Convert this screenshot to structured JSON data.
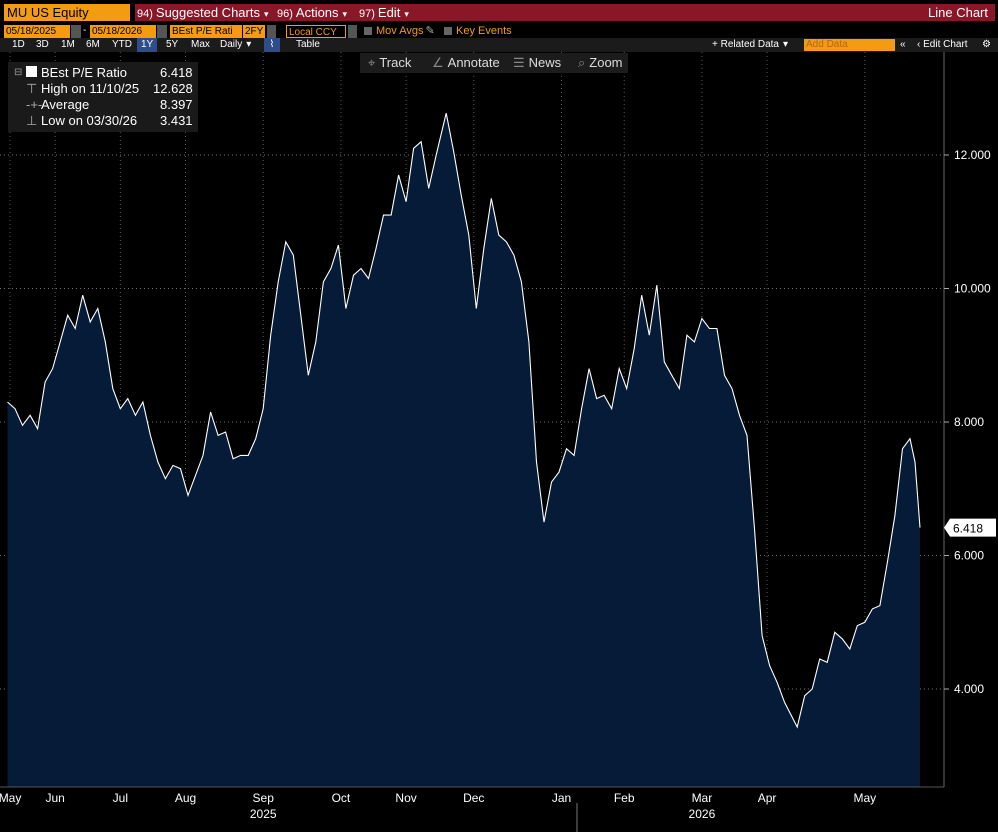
{
  "toolbar": {
    "ticker": "MU US Equity",
    "menu": [
      {
        "num": "94)",
        "label": "Suggested Charts"
      },
      {
        "num": "96)",
        "label": "Actions"
      },
      {
        "num": "97)",
        "label": "Edit"
      }
    ],
    "chart_type": "Line Chart",
    "start_date": "05/18/2025",
    "end_date": "05/18/2026",
    "field": "BEst P/E Rati",
    "period": "2FY",
    "currency": "Local CCY",
    "mov_avgs": "Mov Avgs",
    "key_events": "Key Events",
    "ranges": [
      "1D",
      "3D",
      "1M",
      "6M",
      "YTD",
      "1Y",
      "5Y",
      "Max"
    ],
    "selected_range": "1Y",
    "frequency": "Daily",
    "table": "Table",
    "related_data": "+ Related Data",
    "add_data_placeholder": "Add Data",
    "edit_chart": "Edit Chart",
    "tools": [
      "Track",
      "Annotate",
      "News",
      "Zoom"
    ]
  },
  "legend": {
    "series_label": "BEst P/E Ratio",
    "series_value": "6.418",
    "high_label": "High on 11/10/25",
    "high_value": "12.628",
    "avg_label": "Average",
    "avg_value": "8.397",
    "low_label": "Low on 03/30/26",
    "low_value": "3.431"
  },
  "colors": {
    "background": "#000000",
    "fill": "#061b38",
    "line": "#ffffff",
    "accent": "#f39c12",
    "menu_bar": "#8a1727"
  },
  "chart_data": {
    "type": "area",
    "title": "",
    "xlabel": "",
    "ylabel": "",
    "ylim": [
      2.5,
      13.5
    ],
    "y_ticks": [
      "4.000",
      "6.000",
      "8.000",
      "10.000",
      "12.000"
    ],
    "y_tick_values": [
      4,
      6,
      8,
      10,
      12
    ],
    "last_value_label": "6.418",
    "last_value": 6.418,
    "x_month_labels": [
      "May",
      "Jun",
      "Jul",
      "Aug",
      "Sep",
      "Oct",
      "Nov",
      "Dec",
      "Jan",
      "Feb",
      "Mar",
      "Apr",
      "May"
    ],
    "x_month_dates": [
      "2025-05-20",
      "2025-06-07",
      "2025-07-03",
      "2025-07-29",
      "2025-08-29",
      "2025-09-29",
      "2025-10-25",
      "2025-11-21",
      "2025-12-26",
      "2026-01-20",
      "2026-02-20",
      "2026-03-18",
      "2026-04-26"
    ],
    "x_year_labels": [
      "2025",
      "2026"
    ],
    "x_year_dates": [
      "2025-08-29",
      "2026-02-20"
    ],
    "x_start": "2025-05-18",
    "x_end": "2026-05-18",
    "series": [
      {
        "name": "BEst P/E Ratio",
        "points": [
          [
            "2025-05-19",
            8.3
          ],
          [
            "2025-05-22",
            8.2
          ],
          [
            "2025-05-25",
            7.95
          ],
          [
            "2025-05-28",
            8.1
          ],
          [
            "2025-05-31",
            7.9
          ],
          [
            "2025-06-03",
            8.6
          ],
          [
            "2025-06-06",
            8.8
          ],
          [
            "2025-06-09",
            9.2
          ],
          [
            "2025-06-12",
            9.6
          ],
          [
            "2025-06-15",
            9.4
          ],
          [
            "2025-06-18",
            9.9
          ],
          [
            "2025-06-21",
            9.5
          ],
          [
            "2025-06-24",
            9.7
          ],
          [
            "2025-06-27",
            9.2
          ],
          [
            "2025-06-30",
            8.5
          ],
          [
            "2025-07-03",
            8.2
          ],
          [
            "2025-07-06",
            8.35
          ],
          [
            "2025-07-09",
            8.1
          ],
          [
            "2025-07-12",
            8.3
          ],
          [
            "2025-07-15",
            7.8
          ],
          [
            "2025-07-18",
            7.4
          ],
          [
            "2025-07-21",
            7.15
          ],
          [
            "2025-07-24",
            7.35
          ],
          [
            "2025-07-27",
            7.3
          ],
          [
            "2025-07-30",
            6.9
          ],
          [
            "2025-08-02",
            7.2
          ],
          [
            "2025-08-05",
            7.5
          ],
          [
            "2025-08-08",
            8.15
          ],
          [
            "2025-08-11",
            7.8
          ],
          [
            "2025-08-14",
            7.85
          ],
          [
            "2025-08-17",
            7.45
          ],
          [
            "2025-08-20",
            7.5
          ],
          [
            "2025-08-23",
            7.5
          ],
          [
            "2025-08-26",
            7.75
          ],
          [
            "2025-08-29",
            8.2
          ],
          [
            "2025-09-01",
            9.3
          ],
          [
            "2025-09-04",
            10.1
          ],
          [
            "2025-09-07",
            10.7
          ],
          [
            "2025-09-10",
            10.5
          ],
          [
            "2025-09-13",
            9.6
          ],
          [
            "2025-09-16",
            8.7
          ],
          [
            "2025-09-19",
            9.2
          ],
          [
            "2025-09-22",
            10.1
          ],
          [
            "2025-09-25",
            10.3
          ],
          [
            "2025-09-28",
            10.65
          ],
          [
            "2025-10-01",
            9.7
          ],
          [
            "2025-10-04",
            10.2
          ],
          [
            "2025-10-07",
            10.3
          ],
          [
            "2025-10-10",
            10.15
          ],
          [
            "2025-10-13",
            10.6
          ],
          [
            "2025-10-16",
            11.1
          ],
          [
            "2025-10-19",
            11.1
          ],
          [
            "2025-10-22",
            11.7
          ],
          [
            "2025-10-25",
            11.3
          ],
          [
            "2025-10-28",
            12.1
          ],
          [
            "2025-10-31",
            12.2
          ],
          [
            "2025-11-03",
            11.5
          ],
          [
            "2025-11-06",
            12.0
          ],
          [
            "2025-11-10",
            12.628
          ],
          [
            "2025-11-13",
            12.05
          ],
          [
            "2025-11-16",
            11.4
          ],
          [
            "2025-11-19",
            10.8
          ],
          [
            "2025-11-22",
            9.7
          ],
          [
            "2025-11-25",
            10.6
          ],
          [
            "2025-11-28",
            11.35
          ],
          [
            "2025-12-01",
            10.8
          ],
          [
            "2025-12-04",
            10.7
          ],
          [
            "2025-12-07",
            10.5
          ],
          [
            "2025-12-10",
            10.1
          ],
          [
            "2025-12-13",
            9.2
          ],
          [
            "2025-12-16",
            7.4
          ],
          [
            "2025-12-19",
            6.5
          ],
          [
            "2025-12-22",
            7.1
          ],
          [
            "2025-12-25",
            7.25
          ],
          [
            "2025-12-28",
            7.6
          ],
          [
            "2025-12-31",
            7.5
          ],
          [
            "2026-01-03",
            8.2
          ],
          [
            "2026-01-06",
            8.8
          ],
          [
            "2026-01-09",
            8.35
          ],
          [
            "2026-01-12",
            8.4
          ],
          [
            "2026-01-15",
            8.2
          ],
          [
            "2026-01-18",
            8.8
          ],
          [
            "2026-01-21",
            8.5
          ],
          [
            "2026-01-24",
            9.1
          ],
          [
            "2026-01-27",
            9.9
          ],
          [
            "2026-01-30",
            9.3
          ],
          [
            "2026-02-02",
            10.05
          ],
          [
            "2026-02-05",
            8.9
          ],
          [
            "2026-02-08",
            8.7
          ],
          [
            "2026-02-11",
            8.5
          ],
          [
            "2026-02-14",
            9.3
          ],
          [
            "2026-02-17",
            9.2
          ],
          [
            "2026-02-20",
            9.55
          ],
          [
            "2026-02-23",
            9.4
          ],
          [
            "2026-02-26",
            9.4
          ],
          [
            "2026-03-01",
            8.7
          ],
          [
            "2026-03-04",
            8.5
          ],
          [
            "2026-03-07",
            8.1
          ],
          [
            "2026-03-10",
            7.8
          ],
          [
            "2026-03-13",
            6.4
          ],
          [
            "2026-03-16",
            4.8
          ],
          [
            "2026-03-19",
            4.35
          ],
          [
            "2026-03-22",
            4.1
          ],
          [
            "2026-03-25",
            3.8
          ],
          [
            "2026-03-30",
            3.431
          ],
          [
            "2026-04-02",
            3.9
          ],
          [
            "2026-04-05",
            4.0
          ],
          [
            "2026-04-08",
            4.45
          ],
          [
            "2026-04-11",
            4.4
          ],
          [
            "2026-04-14",
            4.85
          ],
          [
            "2026-04-17",
            4.75
          ],
          [
            "2026-04-20",
            4.6
          ],
          [
            "2026-04-23",
            4.95
          ],
          [
            "2026-04-26",
            5.0
          ],
          [
            "2026-04-29",
            5.2
          ],
          [
            "2026-05-02",
            5.25
          ],
          [
            "2026-05-05",
            5.9
          ],
          [
            "2026-05-08",
            6.6
          ],
          [
            "2026-05-11",
            7.6
          ],
          [
            "2026-05-14",
            7.75
          ],
          [
            "2026-05-16",
            7.4
          ],
          [
            "2026-05-18",
            6.418
          ]
        ]
      }
    ]
  }
}
